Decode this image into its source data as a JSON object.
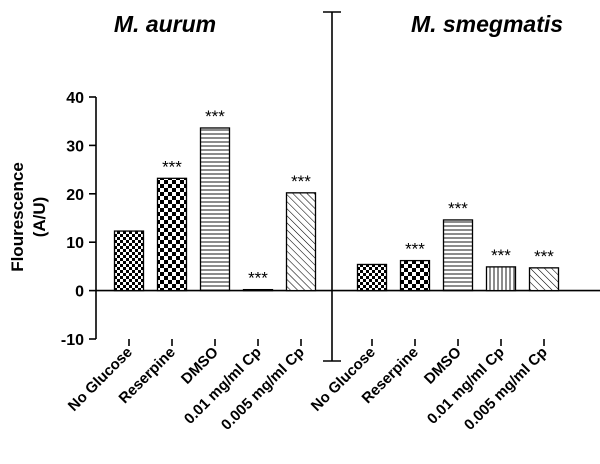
{
  "chart_data": {
    "type": "bar",
    "ylabel": "Flourescence",
    "ylabel_unit": "(A/U)",
    "ylim": [
      -10,
      40
    ],
    "yticks": [
      -10,
      0,
      10,
      20,
      30,
      40
    ],
    "grid": false,
    "panels": [
      {
        "title": "M. aurum",
        "categories": [
          "No Glucose",
          "Reserpine",
          "DMSO",
          "0.01 mg/ml Cp",
          "0.005 mg/ml Cp"
        ],
        "values": [
          12.3,
          23.2,
          33.6,
          0.2,
          20.2
        ],
        "significance": [
          "",
          "***",
          "***",
          "***",
          "***"
        ],
        "patterns": [
          "checker-small",
          "checker-large",
          "horizontal-lines",
          "vertical-lines",
          "diagonal-lines"
        ]
      },
      {
        "title": "M. smegmatis",
        "categories": [
          "No Glucose",
          "Reserpine",
          "DMSO",
          "0.01 mg/ml Cp",
          "0.005 mg/ml Cp"
        ],
        "values": [
          5.4,
          6.2,
          14.6,
          4.9,
          4.7
        ],
        "significance": [
          "",
          "***",
          "***",
          "***",
          "***"
        ],
        "patterns": [
          "checker-small",
          "checker-large",
          "horizontal-lines",
          "vertical-lines",
          "diagonal-lines"
        ]
      }
    ]
  }
}
